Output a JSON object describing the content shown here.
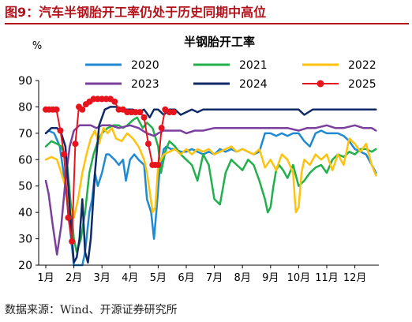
{
  "figure": {
    "title_prefix": "图9：",
    "title_text": "汽车半钢胎开工率仍处于历史同期中高位",
    "source": "数据来源：Wind、开源证券研究所"
  },
  "chart_data": {
    "type": "line",
    "title": "半钢胎开工率",
    "ylabel": "%",
    "xlabel": "",
    "ylim": [
      20,
      90
    ],
    "y_ticks": [
      20,
      30,
      40,
      50,
      60,
      70,
      80,
      90
    ],
    "x_ticks": [
      "1月",
      "2月",
      "3月",
      "4月",
      "5月",
      "6月",
      "7月",
      "8月",
      "9月",
      "10月",
      "11月",
      "12月"
    ],
    "grid": false,
    "legend": "top, 3 columns",
    "series": [
      {
        "name": "2020",
        "color": "#1f8ad2",
        "marker": false,
        "x": [
          1.0,
          1.1,
          1.3,
          1.5,
          1.7,
          1.85,
          2.0,
          2.15,
          2.3,
          2.4,
          2.55,
          2.65,
          2.75,
          2.85,
          3.0,
          3.15,
          3.25,
          3.45,
          3.6,
          3.75,
          3.85,
          4.0,
          4.15,
          4.3,
          4.5,
          4.6,
          4.75,
          4.85,
          4.95,
          5.05,
          5.2,
          5.3,
          5.45,
          5.6,
          5.8,
          6.0,
          6.2,
          6.4,
          6.6,
          6.8,
          7.0,
          7.2,
          7.4,
          7.6,
          7.8,
          8.0,
          8.2,
          8.4,
          8.6,
          8.8,
          9.0,
          9.2,
          9.4,
          9.6,
          9.8,
          10.0,
          10.2,
          10.4,
          10.6,
          10.8,
          11.0,
          11.2,
          11.4,
          11.6,
          11.8,
          12.0,
          12.2,
          12.4,
          12.6,
          12.75
        ],
        "values": [
          70,
          71,
          70,
          65,
          50,
          35,
          20,
          20,
          20,
          25,
          40,
          45,
          55,
          50,
          55,
          62,
          62,
          60,
          58,
          60,
          52,
          60,
          62,
          60,
          58,
          45,
          40,
          30,
          42,
          56,
          64,
          65,
          64,
          64,
          63,
          63,
          64,
          63,
          62,
          63,
          62,
          64,
          63,
          64,
          63,
          64,
          63,
          62,
          63,
          70,
          70,
          69,
          70,
          69,
          70,
          70,
          67,
          65,
          70,
          71,
          70,
          70,
          70,
          69,
          67,
          64,
          63,
          62,
          58,
          55
        ]
      },
      {
        "name": "2021",
        "color": "#21b04b",
        "marker": false,
        "x": [
          1.0,
          1.2,
          1.4,
          1.55,
          1.75,
          1.9,
          2.0,
          2.1,
          2.25,
          2.4,
          2.55,
          2.7,
          2.85,
          3.0,
          3.2,
          3.4,
          3.6,
          3.75,
          3.9,
          4.1,
          4.25,
          4.45,
          4.6,
          4.8,
          5.0,
          5.1,
          5.25,
          5.4,
          5.6,
          5.8,
          6.0,
          6.2,
          6.4,
          6.6,
          6.8,
          7.0,
          7.2,
          7.4,
          7.6,
          7.8,
          8.0,
          8.2,
          8.4,
          8.6,
          8.8,
          8.9,
          9.0,
          9.1,
          9.2,
          9.3,
          9.45,
          9.6,
          9.8,
          10.0,
          10.2,
          10.4,
          10.6,
          10.8,
          11.0,
          11.2,
          11.4,
          11.6,
          11.8,
          12.0,
          12.2,
          12.4,
          12.6,
          12.75
        ],
        "values": [
          65,
          67,
          66,
          65,
          60,
          42,
          30,
          25,
          30,
          40,
          55,
          62,
          67,
          70,
          72,
          73,
          73,
          72,
          73,
          75,
          76,
          72,
          74,
          72,
          65,
          55,
          63,
          67,
          65,
          62,
          60,
          58,
          52,
          62,
          58,
          45,
          43,
          55,
          60,
          58,
          56,
          60,
          58,
          52,
          45,
          40,
          42,
          50,
          56,
          58,
          56,
          53,
          58,
          50,
          52,
          55,
          57,
          58,
          55,
          60,
          62,
          61,
          63,
          62,
          64,
          64,
          63,
          64
        ]
      },
      {
        "name": "2022",
        "color": "#ffc20e",
        "marker": false,
        "x": [
          1.0,
          1.2,
          1.4,
          1.55,
          1.75,
          1.9,
          2.0,
          2.15,
          2.3,
          2.45,
          2.6,
          2.75,
          2.9,
          3.05,
          3.2,
          3.35,
          3.5,
          3.7,
          3.9,
          4.1,
          4.3,
          4.5,
          4.6,
          4.7,
          4.8,
          4.9,
          5.0,
          5.2,
          5.4,
          5.6,
          5.8,
          6.0,
          6.2,
          6.4,
          6.6,
          6.8,
          7.0,
          7.2,
          7.4,
          7.6,
          7.8,
          8.0,
          8.2,
          8.4,
          8.6,
          8.8,
          9.0,
          9.2,
          9.4,
          9.6,
          9.8,
          9.9,
          10.0,
          10.1,
          10.2,
          10.4,
          10.6,
          10.8,
          11.0,
          11.2,
          11.4,
          11.6,
          11.8,
          12.0,
          12.2,
          12.4,
          12.6,
          12.75
        ],
        "values": [
          60,
          61,
          60,
          55,
          48,
          40,
          38,
          45,
          55,
          62,
          68,
          71,
          66,
          72,
          70,
          72,
          68,
          67,
          70,
          68,
          65,
          60,
          55,
          48,
          40,
          42,
          58,
          62,
          63,
          64,
          62,
          64,
          62,
          64,
          63,
          64,
          62,
          63,
          64,
          65,
          63,
          64,
          63,
          62,
          64,
          57,
          60,
          56,
          62,
          60,
          55,
          40,
          42,
          55,
          60,
          58,
          62,
          60,
          62,
          56,
          62,
          58,
          68,
          66,
          63,
          66,
          58,
          54
        ]
      },
      {
        "name": "2023",
        "color": "#7b3f9e",
        "marker": false,
        "x": [
          1.0,
          1.1,
          1.25,
          1.4,
          1.55,
          1.7,
          1.85,
          2.0,
          2.2,
          2.4,
          2.6,
          2.8,
          3.0,
          3.3,
          3.6,
          4.0,
          4.3,
          4.6,
          4.85,
          5.0,
          5.2,
          5.5,
          5.8,
          6.0,
          6.3,
          6.6,
          7.0,
          7.3,
          7.6,
          8.0,
          8.3,
          8.6,
          9.0,
          9.3,
          9.6,
          10.0,
          10.3,
          10.6,
          11.0,
          11.3,
          11.6,
          12.0,
          12.3,
          12.6,
          12.75
        ],
        "values": [
          52,
          47,
          35,
          24,
          35,
          52,
          65,
          71,
          73,
          73,
          73,
          72,
          73,
          73,
          72,
          73,
          72,
          70,
          69,
          70,
          71,
          71,
          71,
          70,
          71,
          71,
          72,
          72,
          72,
          72,
          72,
          72,
          72,
          72,
          72,
          71,
          72,
          72,
          73,
          72,
          72,
          73,
          72,
          72,
          71
        ]
      },
      {
        "name": "2024",
        "color": "#0f2a67",
        "marker": false,
        "x": [
          1.0,
          1.2,
          1.4,
          1.55,
          1.7,
          1.8,
          1.9,
          2.0,
          2.1,
          2.2,
          2.3,
          2.4,
          2.5,
          2.6,
          2.75,
          2.9,
          3.1,
          3.3,
          3.5,
          3.7,
          3.9,
          4.1,
          4.3,
          4.5,
          4.7,
          4.85,
          5.0,
          5.2,
          5.4,
          5.6,
          5.8,
          6.0,
          6.2,
          6.4,
          6.6,
          6.8,
          7.0,
          7.4,
          7.8,
          8.2,
          8.6,
          9.0,
          9.4,
          9.8,
          10.0,
          10.2,
          10.5,
          10.8,
          11.1,
          11.4,
          11.7,
          12.0,
          12.3,
          12.6,
          12.75
        ],
        "values": [
          70,
          72,
          72,
          70,
          65,
          50,
          35,
          21,
          23,
          30,
          45,
          25,
          21,
          30,
          55,
          73,
          79,
          80,
          80,
          79,
          79,
          79,
          78,
          79,
          76,
          79,
          79,
          77,
          79,
          79,
          77,
          78,
          79,
          78,
          79,
          79,
          79,
          79,
          79,
          79,
          79,
          79,
          79,
          79,
          79,
          77,
          79,
          79,
          79,
          79,
          79,
          79,
          79,
          79,
          79
        ]
      },
      {
        "name": "2025",
        "color": "#e8141d",
        "marker": true,
        "x": [
          1.0,
          1.12,
          1.25,
          1.38,
          1.52,
          1.65,
          1.8,
          1.93,
          2.05,
          2.18,
          2.3,
          2.43,
          2.56,
          2.7,
          2.85,
          3.0,
          3.15,
          3.3,
          3.45,
          3.6,
          3.75,
          3.9,
          4.05,
          4.2,
          4.35,
          4.5,
          4.65,
          4.8,
          4.9,
          5.0,
          5.12,
          5.25,
          5.4,
          5.55
        ],
        "values": [
          79,
          79,
          79,
          79,
          71,
          62,
          38,
          29,
          66,
          80,
          79,
          81,
          82,
          83,
          83,
          83,
          83,
          83,
          82,
          79,
          79,
          78,
          78,
          78,
          78,
          76,
          66,
          58,
          58,
          58,
          72,
          79,
          78,
          78
        ]
      }
    ]
  }
}
